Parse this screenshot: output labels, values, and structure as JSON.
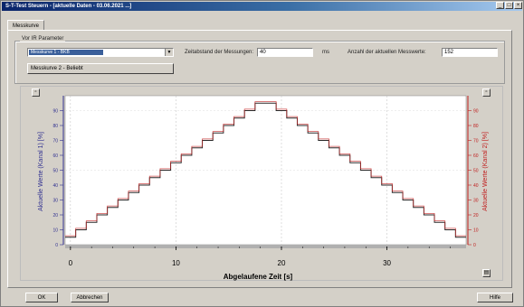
{
  "window": {
    "title": "S-T-Test Steuern - [aktuelle Daten - 03.06.2021 ...]"
  },
  "tabs": [
    {
      "label": "Messkurve"
    }
  ],
  "settings": {
    "group_label": "Vor IR Parameter",
    "combo_value": "Messkurve 1 - BKB",
    "interval_label": "Zeitabstand der Messungen:",
    "interval_value": "40",
    "interval_unit": "ms",
    "points_label": "Anzahl der aktuellen Messwerte:",
    "points_value": "152",
    "curve2_button": "Messkurve 2 - Beliebt"
  },
  "chart_data": {
    "type": "line",
    "xlabel": "Abgelaufene Zeit   [s]",
    "ylabel_left": "Aktuelle Werte (Kanal 1) [%]",
    "ylabel_right": "Aktuelle Werte (Kanal 2) [%]",
    "xlim": [
      -0.5,
      37.5
    ],
    "ylim": [
      0,
      100
    ],
    "x_ticks": [
      0,
      10,
      20,
      30
    ],
    "y_ticks": [
      0,
      10,
      20,
      30,
      40,
      50,
      60,
      70,
      80,
      90
    ],
    "grid": "vertical-dashed",
    "colors": {
      "series1": "#2a2a2a",
      "series2": "#c02020",
      "left_axis": "#303090",
      "right_axis": "#c02020"
    },
    "series": [
      {
        "key": "channel1",
        "step": true,
        "x": [
          0,
          1,
          2,
          3,
          4,
          5,
          6,
          7,
          8,
          9,
          10,
          11,
          12,
          13,
          14,
          15,
          16,
          17,
          18,
          19,
          20,
          21,
          22,
          23,
          24,
          25,
          26,
          27,
          28,
          29,
          30,
          31,
          32,
          33,
          34,
          35,
          36,
          37
        ],
        "values": [
          5,
          10,
          15,
          20,
          25,
          30,
          35,
          40,
          45,
          50,
          55,
          60,
          65,
          70,
          75,
          80,
          85,
          90,
          95,
          95,
          90,
          85,
          80,
          75,
          70,
          65,
          60,
          55,
          50,
          45,
          40,
          35,
          30,
          25,
          20,
          15,
          10,
          5
        ]
      },
      {
        "key": "channel2",
        "step": true,
        "x": [
          0,
          1,
          2,
          3,
          4,
          5,
          6,
          7,
          8,
          9,
          10,
          11,
          12,
          13,
          14,
          15,
          16,
          17,
          18,
          19,
          20,
          21,
          22,
          23,
          24,
          25,
          26,
          27,
          28,
          29,
          30,
          31,
          32,
          33,
          34,
          35,
          36,
          37
        ],
        "values": [
          6,
          11,
          16,
          21,
          26,
          31,
          36,
          41,
          46,
          51,
          56,
          61,
          66,
          71,
          76,
          81,
          86,
          91,
          96,
          96,
          91,
          86,
          81,
          76,
          71,
          66,
          61,
          56,
          51,
          46,
          41,
          36,
          31,
          26,
          21,
          16,
          11,
          6
        ]
      }
    ]
  },
  "footer": {
    "ok_label": "OK",
    "abort_label": "Abbrechen",
    "help_label": "Hilfe"
  }
}
